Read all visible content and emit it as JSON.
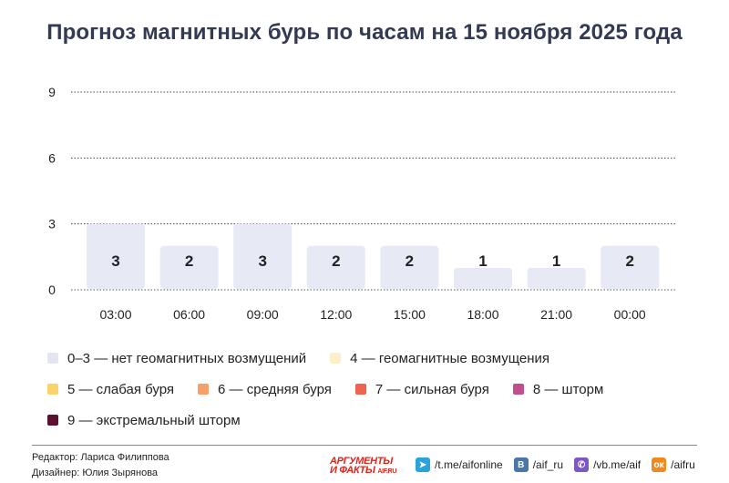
{
  "title": "Прогноз магнитных бурь по часам на 15 ноября 2025 года",
  "chart_data": {
    "type": "bar",
    "categories": [
      "03:00",
      "06:00",
      "09:00",
      "12:00",
      "15:00",
      "18:00",
      "21:00",
      "00:00"
    ],
    "values": [
      3,
      2,
      3,
      2,
      2,
      1,
      1,
      2
    ],
    "ylim": [
      0,
      9
    ],
    "yticks": [
      0,
      3,
      6,
      9
    ],
    "grid": true,
    "bar_color": "#e7e9f4",
    "data_labels": true
  },
  "legend": {
    "items": [
      {
        "label": "0–3 — нет геомагнитных возмущений",
        "color": "#e3e5f1"
      },
      {
        "label": "4 — геомагнитные возмущения",
        "color": "#fbf0c9"
      },
      {
        "label": "5 — слабая буря",
        "color": "#fbd36b"
      },
      {
        "label": "6 — средняя буря",
        "color": "#f6a06b"
      },
      {
        "label": "7 — сильная буря",
        "color": "#ef6450"
      },
      {
        "label": "8 — шторм",
        "color": "#c14e8d"
      },
      {
        "label": "9 — экстремальный шторм",
        "color": "#5a1230"
      }
    ]
  },
  "footer": {
    "editor": "Редактор: Лариса Филиппова",
    "designer": "Дизайнер: Юлия Зырянова",
    "logo_line1": "АРГУМЕНТЫ",
    "logo_line2": "И ФАКТЫ",
    "logo_domain": "AIF.RU",
    "socials": [
      {
        "icon": "telegram-icon",
        "label": "/t.me/aifonline",
        "color": "#2aa3db"
      },
      {
        "icon": "vk-icon",
        "label": "/aif_ru",
        "color": "#4a76a8"
      },
      {
        "icon": "viber-icon",
        "label": "/vb.me/aif",
        "color": "#7d57c2"
      },
      {
        "icon": "odnoklassniki-icon",
        "label": "/aifru",
        "color": "#f08a1e"
      }
    ]
  }
}
